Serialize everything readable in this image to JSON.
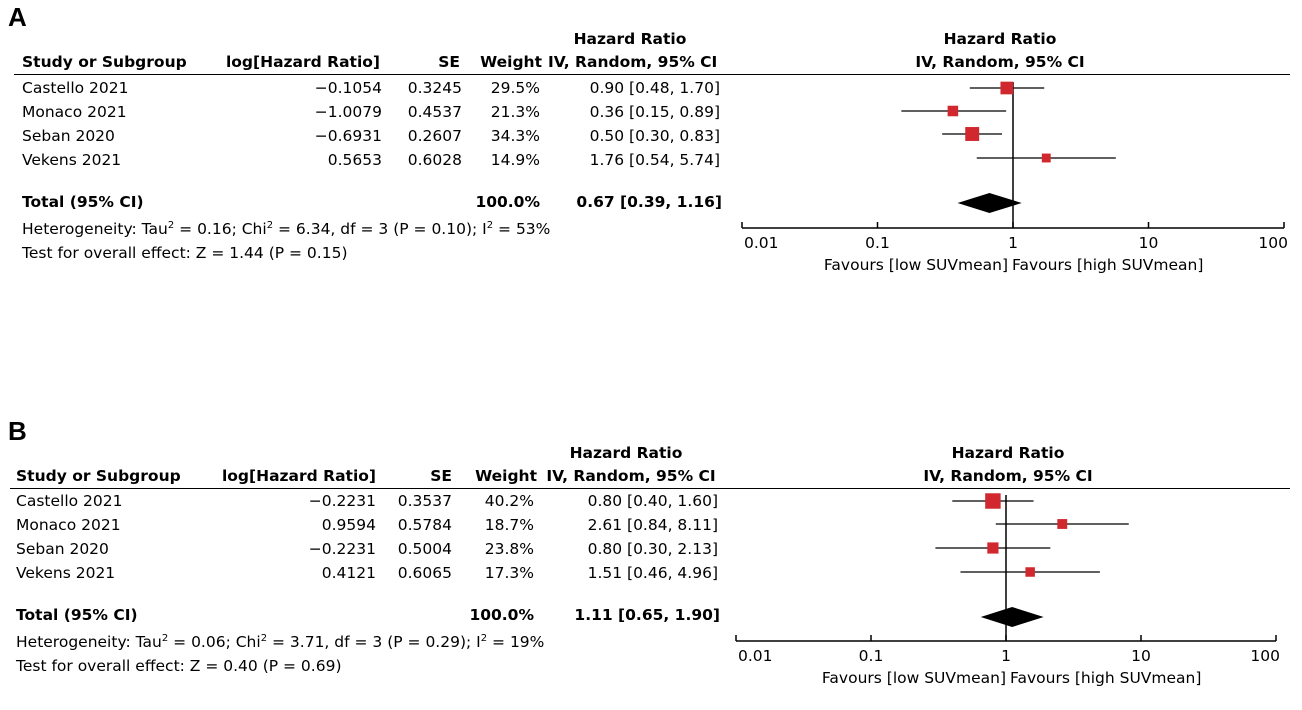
{
  "panels": [
    {
      "letter": "A",
      "headers": {
        "study": "Study or Subgroup",
        "loghr": "log[Hazard Ratio]",
        "se": "SE",
        "weight": "Weight",
        "hr_top": "Hazard Ratio",
        "hr_bottom": "IV, Random, 95% CI",
        "plot_top": "Hazard Ratio",
        "plot_bottom": "IV, Random, 95% CI"
      },
      "studies": [
        {
          "name": "Castello 2021",
          "loghr": "−0.1054",
          "se": "0.3245",
          "weight": "29.5%",
          "ci": "0.90 [0.48, 1.70]"
        },
        {
          "name": "Monaco 2021",
          "loghr": "−1.0079",
          "se": "0.4537",
          "weight": "21.3%",
          "ci": "0.36 [0.15, 0.89]"
        },
        {
          "name": "Seban 2020",
          "loghr": "−0.6931",
          "se": "0.2607",
          "weight": "34.3%",
          "ci": "0.50 [0.30, 0.83]"
        },
        {
          "name": "Vekens 2021",
          "loghr": "0.5653",
          "se": "0.6028",
          "weight": "14.9%",
          "ci": "1.76 [0.54, 5.74]"
        }
      ],
      "total": {
        "label": "Total (95% CI)",
        "weight": "100.0%",
        "ci": "0.67 [0.39, 1.16]"
      },
      "heterogeneity": {
        "prefix": "Heterogeneity: Tau",
        "tau": " = 0.16; Chi",
        "chi": " = 6.34, df = 3 (P = 0.10); I",
        "i2": " = 53%",
        "sup": "2"
      },
      "overall": "Test for overall effect: Z = 1.44 (P = 0.15)",
      "axis": {
        "ticks": [
          "0.01",
          "0.1",
          "1",
          "10",
          "100"
        ],
        "favours_left": "Favours [low SUVmean]",
        "favours_right": "Favours [high SUVmean]"
      }
    },
    {
      "letter": "B",
      "headers": {
        "study": "Study or Subgroup",
        "loghr": "log[Hazard Ratio]",
        "se": "SE",
        "weight": "Weight",
        "hr_top": "Hazard Ratio",
        "hr_bottom": "IV, Random, 95% CI",
        "plot_top": "Hazard Ratio",
        "plot_bottom": "IV, Random, 95% CI"
      },
      "studies": [
        {
          "name": "Castello 2021",
          "loghr": "−0.2231",
          "se": "0.3537",
          "weight": "40.2%",
          "ci": "0.80 [0.40, 1.60]"
        },
        {
          "name": "Monaco 2021",
          "loghr": "0.9594",
          "se": "0.5784",
          "weight": "18.7%",
          "ci": "2.61 [0.84, 8.11]"
        },
        {
          "name": "Seban 2020",
          "loghr": "−0.2231",
          "se": "0.5004",
          "weight": "23.8%",
          "ci": "0.80 [0.30, 2.13]"
        },
        {
          "name": "Vekens 2021",
          "loghr": "0.4121",
          "se": "0.6065",
          "weight": "17.3%",
          "ci": "1.51 [0.46, 4.96]"
        }
      ],
      "total": {
        "label": "Total (95% CI)",
        "weight": "100.0%",
        "ci": "1.11 [0.65, 1.90]"
      },
      "heterogeneity": {
        "prefix": "Heterogeneity: Tau",
        "tau": " = 0.06; Chi",
        "chi": " = 3.71, df = 3 (P = 0.29); I",
        "i2": " = 19%",
        "sup": "2"
      },
      "overall": "Test for overall effect: Z = 0.40 (P = 0.69)",
      "axis": {
        "ticks": [
          "0.01",
          "0.1",
          "1",
          "10",
          "100"
        ],
        "favours_left": "Favours [low SUVmean]",
        "favours_right": "Favours [high SUVmean]"
      }
    }
  ],
  "colors": {
    "marker": "#d0282e",
    "diamond": "#000000"
  },
  "chart_data": [
    {
      "type": "forest",
      "title": "A",
      "scale": "log",
      "xlim": [
        0.01,
        100
      ],
      "null_line": 1,
      "series": [
        {
          "name": "Castello 2021",
          "hr": 0.9,
          "lo": 0.48,
          "hi": 1.7,
          "weight": 29.5
        },
        {
          "name": "Monaco 2021",
          "hr": 0.36,
          "lo": 0.15,
          "hi": 0.89,
          "weight": 21.3
        },
        {
          "name": "Seban 2020",
          "hr": 0.5,
          "lo": 0.3,
          "hi": 0.83,
          "weight": 34.3
        },
        {
          "name": "Vekens 2021",
          "hr": 1.76,
          "lo": 0.54,
          "hi": 5.74,
          "weight": 14.9
        }
      ],
      "total": {
        "hr": 0.67,
        "lo": 0.39,
        "hi": 1.16
      }
    },
    {
      "type": "forest",
      "title": "B",
      "scale": "log",
      "xlim": [
        0.01,
        100
      ],
      "null_line": 1,
      "series": [
        {
          "name": "Castello 2021",
          "hr": 0.8,
          "lo": 0.4,
          "hi": 1.6,
          "weight": 40.2
        },
        {
          "name": "Monaco 2021",
          "hr": 2.61,
          "lo": 0.84,
          "hi": 8.11,
          "weight": 18.7
        },
        {
          "name": "Seban 2020",
          "hr": 0.8,
          "lo": 0.3,
          "hi": 2.13,
          "weight": 23.8
        },
        {
          "name": "Vekens 2021",
          "hr": 1.51,
          "lo": 0.46,
          "hi": 4.96,
          "weight": 17.3
        }
      ],
      "total": {
        "hr": 1.11,
        "lo": 0.65,
        "hi": 1.9
      }
    }
  ]
}
